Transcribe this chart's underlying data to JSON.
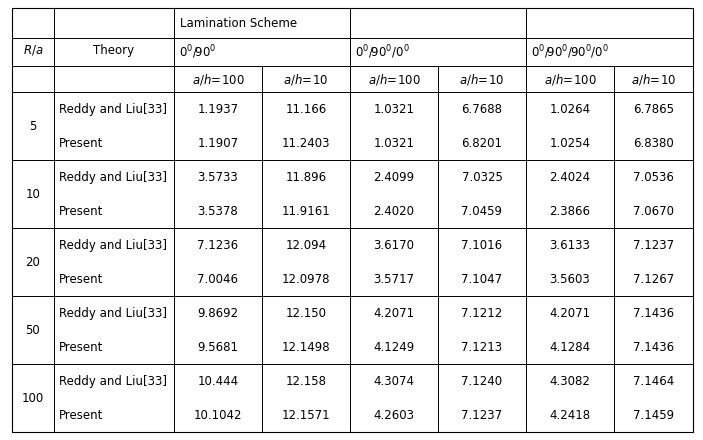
{
  "rows": [
    [
      "5",
      "Reddy and Liu[33]",
      "1.1937",
      "11.166",
      "1.0321",
      "6.7688",
      "1.0264",
      "6.7865"
    ],
    [
      "",
      "Present",
      "1.1907",
      "11.2403",
      "1.0321",
      "6.8201",
      "1.0254",
      "6.8380"
    ],
    [
      "10",
      "Reddy and Liu[33]",
      "3.5733",
      "11.896",
      "2.4099",
      "7.0325",
      "2.4024",
      "7.0536"
    ],
    [
      "",
      "Present",
      "3.5378",
      "11.9161",
      "2.4020",
      "7.0459",
      "2.3866",
      "7.0670"
    ],
    [
      "20",
      "Reddy and Liu[33]",
      "7.1236",
      "12.094",
      "3.6170",
      "7.1016",
      "3.6133",
      "7.1237"
    ],
    [
      "",
      "Present",
      "7.0046",
      "12.0978",
      "3.5717",
      "7.1047",
      "3.5603",
      "7.1267"
    ],
    [
      "50",
      "Reddy and Liu[33]",
      "9.8692",
      "12.150",
      "4.2071",
      "7.1212",
      "4.2071",
      "7.1436"
    ],
    [
      "",
      "Present",
      "9.5681",
      "12.1498",
      "4.1249",
      "7.1213",
      "4.1284",
      "7.1436"
    ],
    [
      "100",
      "Reddy and Liu[33]",
      "10.444",
      "12.158",
      "4.3074",
      "7.1240",
      "4.3082",
      "7.1464"
    ],
    [
      "",
      "Present",
      "10.1042",
      "12.1571",
      "4.2603",
      "7.1237",
      "4.2418",
      "7.1459"
    ]
  ],
  "background_color": "#ffffff",
  "line_color": "#000000",
  "font_size": 8.5
}
